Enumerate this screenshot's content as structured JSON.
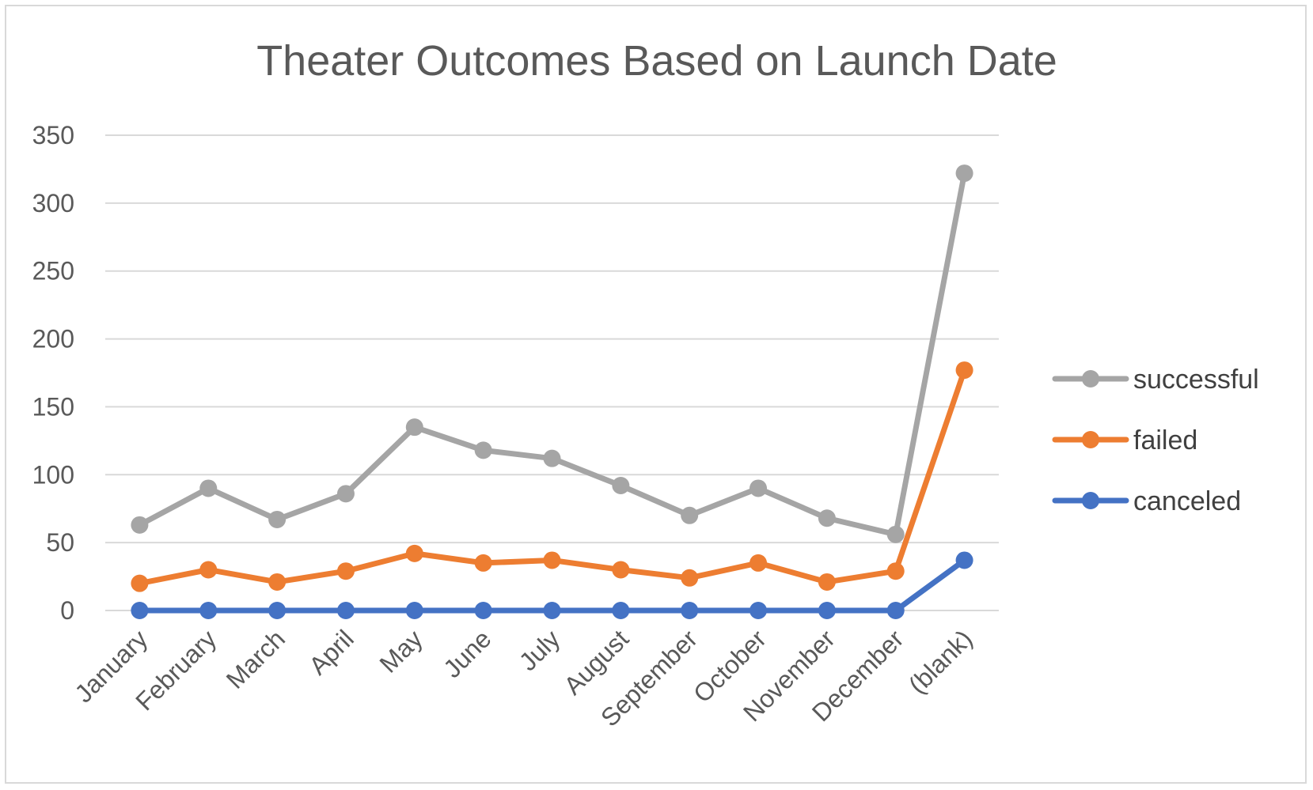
{
  "chart_data": {
    "type": "line",
    "title": "Theater Outcomes Based on Launch Date",
    "xlabel": "",
    "ylabel": "",
    "categories": [
      "January",
      "February",
      "March",
      "April",
      "May",
      "June",
      "July",
      "August",
      "September",
      "October",
      "November",
      "December",
      "(blank)"
    ],
    "ylim": [
      0,
      350
    ],
    "yticks": [
      0,
      50,
      100,
      150,
      200,
      250,
      300,
      350
    ],
    "grid": true,
    "legend_position": "right",
    "series": [
      {
        "name": "successful",
        "color": "#a5a5a5",
        "values": [
          63,
          90,
          67,
          86,
          135,
          118,
          112,
          92,
          70,
          90,
          68,
          56,
          322
        ]
      },
      {
        "name": "failed",
        "color": "#ed7d31",
        "values": [
          20,
          30,
          21,
          29,
          42,
          35,
          37,
          30,
          24,
          35,
          21,
          29,
          177
        ]
      },
      {
        "name": "canceled",
        "color": "#4472c4",
        "values": [
          0,
          0,
          0,
          0,
          0,
          0,
          0,
          0,
          0,
          0,
          0,
          0,
          37
        ]
      }
    ]
  }
}
